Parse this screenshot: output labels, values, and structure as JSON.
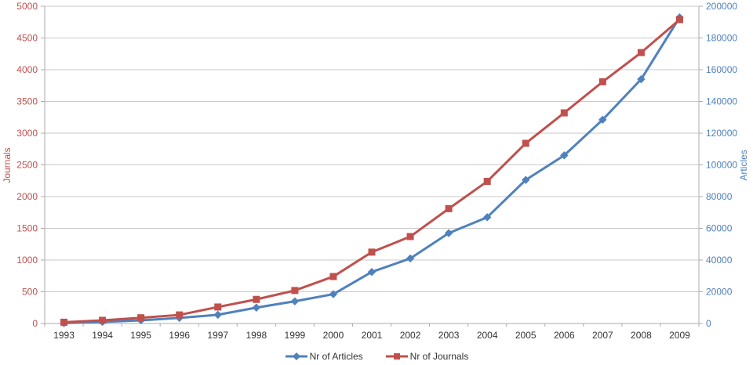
{
  "chart_data": {
    "type": "line",
    "title": "",
    "categories": [
      "1993",
      "1994",
      "1995",
      "1996",
      "1997",
      "1998",
      "1999",
      "2000",
      "2001",
      "2002",
      "2003",
      "2004",
      "2005",
      "2006",
      "2007",
      "2008",
      "2009"
    ],
    "series": [
      {
        "name": "Nr of Articles",
        "axis": "right",
        "color": "#4F81BD",
        "marker": "diamond",
        "values": [
          250,
          1000,
          2000,
          3500,
          5500,
          10000,
          14000,
          18500,
          32500,
          41000,
          57000,
          67000,
          90500,
          106000,
          128500,
          154000,
          193000
        ]
      },
      {
        "name": "Nr of Journals",
        "axis": "left",
        "color": "#C0504D",
        "marker": "square",
        "values": [
          20,
          50,
          90,
          135,
          260,
          380,
          520,
          740,
          1125,
          1370,
          1810,
          2240,
          2840,
          3320,
          3810,
          4270,
          4790
        ]
      }
    ],
    "axes": {
      "left": {
        "title": "Journals",
        "min": 0,
        "max": 5000,
        "step": 500,
        "tick_color": "#C0504D"
      },
      "right": {
        "title": "Articles",
        "min": 0,
        "max": 200000,
        "step": 20000,
        "tick_color": "#4F81BD"
      },
      "x": {
        "tick_color": "#333333"
      }
    },
    "grid": true,
    "legend_position": "bottom",
    "style": {
      "gridline_color": "#C9C9C9",
      "axis_line_color": "#ABABAB",
      "background": "#FFFFFF"
    }
  },
  "axis_titles": {
    "left": "Journals",
    "right": "Articles"
  },
  "legend": {
    "items": [
      {
        "label": "Nr of Articles"
      },
      {
        "label": "Nr of Journals"
      }
    ]
  }
}
